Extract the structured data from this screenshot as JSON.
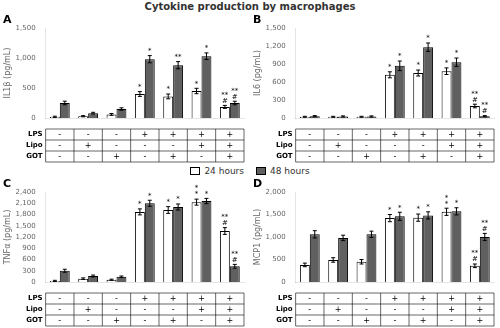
{
  "title": "Cytokine production by macrophages",
  "legend": "center",
  "chart_data": [
    {
      "type": "bar",
      "title": "A",
      "ylabel": "IL1β (pg/mL)",
      "categories": [
        null,
        null,
        null,
        null,
        null,
        null,
        null
      ],
      "ylim": [
        0,
        1500
      ],
      "yticks": [
        0,
        500,
        {
          "value": 1000,
          "label": "1,000"
        },
        {
          "value": 1500,
          "label": "1,500"
        }
      ],
      "grid": false,
      "tick_labels": "y",
      "series": [
        {
          "name": "24 hours",
          "color": "#ffffff",
          "edgecolor": "#000000",
          "values": [
            20,
            30,
            60,
            400,
            360,
            450,
            185
          ],
          "errors": [
            10,
            10,
            15,
            40,
            40,
            45,
            25
          ],
          "annotations": [
            [],
            [],
            [],
            [
              "*"
            ],
            [
              "*"
            ],
            [
              "*"
            ],
            [
              "#",
              "**"
            ]
          ]
        },
        {
          "name": "48 hours",
          "color": "#606060",
          "edgecolor": "#000000",
          "values": [
            250,
            80,
            150,
            980,
            880,
            1030,
            250
          ],
          "errors": [
            30,
            15,
            20,
            60,
            60,
            55,
            30
          ],
          "annotations": [
            [],
            [],
            [],
            [
              "*"
            ],
            [
              "**"
            ],
            [
              "*"
            ],
            [
              "#",
              "**"
            ]
          ]
        }
      ],
      "table": {
        "rows": [
          "LPS",
          "Lipo",
          "GOT"
        ],
        "cells": [
          [
            "-",
            "-",
            "-",
            "+",
            "+",
            "+",
            "+"
          ],
          [
            "-",
            "+",
            "-",
            "-",
            "-",
            "+",
            "+"
          ],
          [
            "-",
            "-",
            "+",
            "-",
            "+",
            "-",
            "+"
          ]
        ]
      }
    },
    {
      "type": "bar",
      "title": "B",
      "ylabel": "IL6 (pg/mL)",
      "categories": [
        null,
        null,
        null,
        null,
        null,
        null,
        null
      ],
      "ylim": [
        0,
        1500
      ],
      "yticks": [
        0,
        300,
        600,
        900,
        {
          "value": 1200,
          "label": "1,200"
        },
        {
          "value": 1500,
          "label": "1,500"
        }
      ],
      "grid": false,
      "tick_labels": "y",
      "series": [
        {
          "name": "24 hours",
          "color": "#ffffff",
          "edgecolor": "#000000",
          "values": [
            20,
            20,
            20,
            720,
            750,
            780,
            200
          ],
          "errors": [
            8,
            8,
            8,
            50,
            50,
            55,
            30
          ],
          "annotations": [
            [],
            [],
            [],
            [
              "*"
            ],
            [
              "*"
            ],
            [
              "*"
            ],
            [
              "#",
              "**"
            ]
          ]
        },
        {
          "name": "48 hours",
          "color": "#606060",
          "edgecolor": "#000000",
          "values": [
            30,
            25,
            25,
            870,
            1180,
            930,
            30
          ],
          "errors": [
            10,
            10,
            10,
            80,
            70,
            70,
            10
          ],
          "annotations": [
            [],
            [],
            [],
            [
              "*"
            ],
            [
              "*"
            ],
            [
              "*"
            ],
            [
              "#",
              "**"
            ]
          ]
        }
      ],
      "table": {
        "rows": [
          "LPS",
          "Lipo",
          "GOT"
        ],
        "cells": [
          [
            "-",
            "-",
            "-",
            "+",
            "+",
            "+",
            "+"
          ],
          [
            "-",
            "+",
            "-",
            "-",
            "-",
            "+",
            "+"
          ],
          [
            "-",
            "-",
            "+",
            "-",
            "+",
            "-",
            "+"
          ]
        ]
      }
    },
    {
      "type": "bar",
      "title": "C",
      "ylabel": "TNFα (pg/mL)",
      "categories": [
        null,
        null,
        null,
        null,
        null,
        null,
        null
      ],
      "ylim": [
        0,
        2400
      ],
      "yticks": [
        0,
        300,
        600,
        900,
        {
          "value": 1200,
          "label": "1,200"
        },
        {
          "value": 1500,
          "label": "1,500"
        },
        {
          "value": 1800,
          "label": "1,800"
        },
        {
          "value": 2100,
          "label": "2,100"
        },
        {
          "value": 2400,
          "label": "2,400"
        }
      ],
      "grid": false,
      "tick_labels": "y",
      "series": [
        {
          "name": "24 hours",
          "color": "#ffffff",
          "edgecolor": "#000000",
          "values": [
            30,
            90,
            60,
            1870,
            1920,
            2130,
            1360
          ],
          "errors": [
            15,
            20,
            15,
            80,
            90,
            80,
            90
          ],
          "annotations": [
            [],
            [],
            [],
            [
              "*"
            ],
            [
              "*"
            ],
            [
              "*",
              "*"
            ],
            [
              "#",
              "**"
            ]
          ]
        },
        {
          "name": "48 hours",
          "color": "#606060",
          "edgecolor": "#000000",
          "values": [
            300,
            160,
            140,
            2100,
            2000,
            2160,
            420
          ],
          "errors": [
            40,
            25,
            20,
            80,
            80,
            70,
            50
          ],
          "annotations": [
            [],
            [],
            [],
            [
              "*"
            ],
            [
              "*"
            ],
            [
              "*"
            ],
            [
              "#",
              "**"
            ]
          ]
        }
      ],
      "table": {
        "rows": [
          "LPS",
          "Lipo",
          "GOT"
        ],
        "cells": [
          [
            "-",
            "-",
            "-",
            "+",
            "+",
            "+",
            "+"
          ],
          [
            "-",
            "+",
            "-",
            "-",
            "-",
            "+",
            "+"
          ],
          [
            "-",
            "-",
            "+",
            "-",
            "+",
            "-",
            "+"
          ]
        ]
      }
    },
    {
      "type": "bar",
      "title": "D",
      "ylabel": "MCP1 (pg/mL)",
      "categories": [
        null,
        null,
        null,
        null,
        null,
        null,
        null
      ],
      "ylim": [
        0,
        2000
      ],
      "yticks": [
        0,
        500,
        {
          "value": 1000,
          "label": "1,000"
        },
        {
          "value": 1500,
          "label": "1,500"
        },
        {
          "value": 2000,
          "label": "2,000"
        }
      ],
      "grid": false,
      "tick_labels": "y",
      "series": [
        {
          "name": "24 hours",
          "color": "#ffffff",
          "edgecolor": "#000000",
          "values": [
            380,
            490,
            450,
            1420,
            1430,
            1560,
            360
          ],
          "errors": [
            40,
            50,
            50,
            80,
            80,
            80,
            40
          ],
          "annotations": [
            [],
            [],
            [],
            [
              "*"
            ],
            [
              "*"
            ],
            [
              "*",
              "*"
            ],
            [
              "#",
              "**"
            ]
          ]
        },
        {
          "name": "48 hours",
          "color": "#606060",
          "edgecolor": "#000000",
          "values": [
            1060,
            980,
            1060,
            1460,
            1480,
            1570,
            1000
          ],
          "errors": [
            80,
            60,
            70,
            90,
            80,
            80,
            80
          ],
          "annotations": [
            [],
            [],
            [],
            [
              "*"
            ],
            [
              "*"
            ],
            [
              "*"
            ],
            [
              "#",
              "**"
            ]
          ]
        }
      ],
      "table": {
        "rows": [
          "LPS",
          "Lipo",
          "GOT"
        ],
        "cells": [
          [
            "-",
            "-",
            "-",
            "+",
            "+",
            "+",
            "+"
          ],
          [
            "-",
            "+",
            "-",
            "-",
            "-",
            "+",
            "+"
          ],
          [
            "-",
            "-",
            "+",
            "-",
            "+",
            "-",
            "+"
          ]
        ]
      }
    }
  ]
}
